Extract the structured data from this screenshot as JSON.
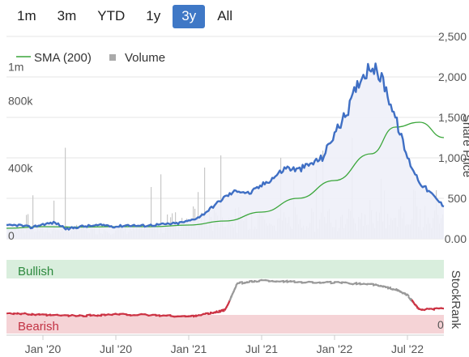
{
  "range_selector": {
    "buttons": [
      "1m",
      "3m",
      "YTD",
      "1y",
      "3y",
      "All"
    ],
    "active": "3y"
  },
  "colors": {
    "price": "#3f6fc4",
    "price_fill": "#eef0f8",
    "sma": "#3aa63a",
    "volume": "#c8c8c8",
    "stockrank_above": "#999999",
    "stockrank_below": "#cc3344",
    "bullish_band": "#d9eedd",
    "bearish_band": "#f5d3d6",
    "active_button": "#3f78c6"
  },
  "chart_data": [
    {
      "type": "line",
      "legend": [
        "SMA (200)",
        "Volume"
      ],
      "legend_placement": "top-left",
      "ylabel_right": "Share Price",
      "y_right_ticks": [
        "2,500",
        "2,000",
        "1,500",
        "1,000",
        "500",
        "0.00"
      ],
      "y_right_range": [
        0,
        2500
      ],
      "y_left_ticks": [
        "1m",
        "800k",
        "400k",
        "0"
      ],
      "y_left_range": [
        0,
        1200000
      ],
      "x_ticks": [
        "Jan '20",
        "Jul '20",
        "Jan '21",
        "Jul '21",
        "Jan '22",
        "Jul '22"
      ],
      "x_range": [
        "2019-10",
        "2022-10"
      ],
      "series": [
        {
          "name": "Share Price",
          "x": [
            "2019-10",
            "2019-11",
            "2019-12",
            "2020-01",
            "2020-02",
            "2020-03",
            "2020-04",
            "2020-05",
            "2020-06",
            "2020-07",
            "2020-08",
            "2020-09",
            "2020-10",
            "2020-11",
            "2020-12",
            "2021-01",
            "2021-02",
            "2021-03",
            "2021-04",
            "2021-05",
            "2021-06",
            "2021-07",
            "2021-08",
            "2021-09",
            "2021-10",
            "2021-11",
            "2021-12",
            "2022-01",
            "2022-02",
            "2022-03",
            "2022-04",
            "2022-05",
            "2022-06",
            "2022-07",
            "2022-08",
            "2022-09",
            "2022-10"
          ],
          "values": [
            160,
            170,
            140,
            180,
            200,
            120,
            150,
            160,
            170,
            150,
            170,
            160,
            170,
            180,
            190,
            220,
            280,
            400,
            520,
            600,
            560,
            660,
            760,
            880,
            850,
            920,
            1000,
            1300,
            1550,
            1950,
            2150,
            1950,
            1500,
            1000,
            700,
            550,
            400
          ]
        },
        {
          "name": "SMA (200)",
          "x": [
            "2019-10",
            "2020-01",
            "2020-04",
            "2020-07",
            "2020-10",
            "2021-01",
            "2021-04",
            "2021-07",
            "2021-10",
            "2022-01",
            "2022-04",
            "2022-06",
            "2022-08",
            "2022-10"
          ],
          "values": [
            130,
            150,
            145,
            150,
            150,
            170,
            220,
            330,
            500,
            720,
            1050,
            1380,
            1440,
            1250
          ]
        }
      ]
    },
    {
      "type": "line",
      "ylabel_right": "StockRank",
      "bands": [
        "Bullish",
        "Bearish"
      ],
      "y_right_ticks": [
        "0"
      ],
      "y_range": [
        0,
        100
      ],
      "x_range": [
        "2019-10",
        "2022-10"
      ],
      "series": [
        {
          "name": "StockRank",
          "x": [
            "2019-10",
            "2020-01",
            "2020-04",
            "2020-07",
            "2020-10",
            "2021-01",
            "2021-03",
            "2021-04",
            "2021-05",
            "2021-07",
            "2021-10",
            "2022-01",
            "2022-04",
            "2022-06",
            "2022-07",
            "2022-08",
            "2022-10"
          ],
          "values": [
            28,
            25,
            24,
            26,
            25,
            23,
            28,
            32,
            68,
            72,
            70,
            69,
            67,
            60,
            52,
            32,
            34
          ]
        }
      ]
    }
  ]
}
